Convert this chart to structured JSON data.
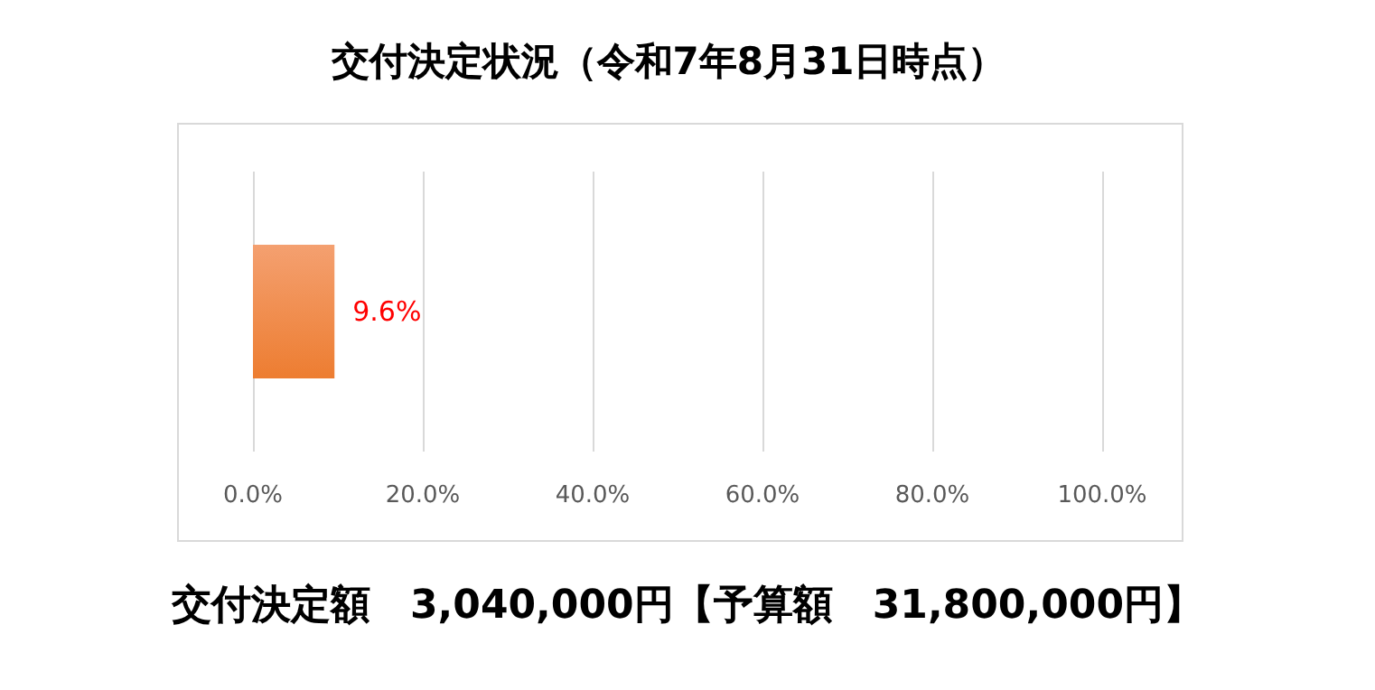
{
  "chart_data": {
    "type": "bar",
    "orientation": "horizontal",
    "title": "交付決定状況（令和7年8月31日時点）",
    "categories": [
      null
    ],
    "values": [
      9.6
    ],
    "color": "#ed7d31",
    "value_labels": [
      "9.6%"
    ],
    "xlim": [
      0,
      100
    ],
    "xticks": [
      {
        "value": 0,
        "label": "0.0%"
      },
      {
        "value": 20,
        "label": "20.0%"
      },
      {
        "value": 40,
        "label": "40.0%"
      },
      {
        "value": 60,
        "label": "60.0%"
      },
      {
        "value": 80,
        "label": "80.0%"
      },
      {
        "value": 100,
        "label": "100.0%"
      }
    ],
    "grid": "x",
    "annotations": [
      "交付決定額　3,040,000円【予算額　31,800,000円】"
    ]
  }
}
